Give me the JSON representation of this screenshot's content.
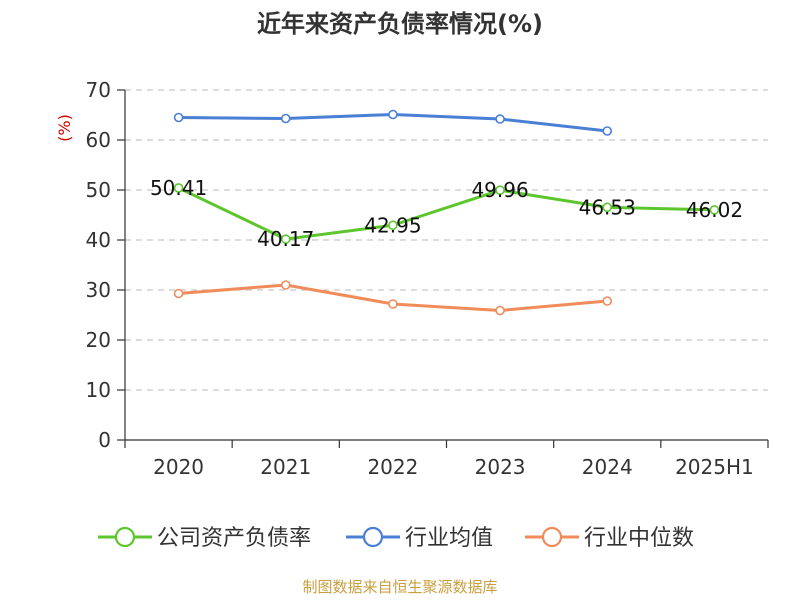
{
  "chart_data": {
    "type": "line",
    "title": "近年来资产负债率情况(%)",
    "ylabel": "(%)",
    "ylim": [
      0,
      70
    ],
    "yticks": [
      0,
      10,
      20,
      30,
      40,
      50,
      60,
      70
    ],
    "grid": true,
    "legend_position": "bottom",
    "categories": [
      "2020",
      "2021",
      "2022",
      "2023",
      "2024",
      "2025H1"
    ],
    "series": [
      {
        "name": "公司资产负债率",
        "color": "#5cc62c",
        "values": [
          50.41,
          40.17,
          42.95,
          49.96,
          46.53,
          46.02
        ],
        "labels": [
          "50.41",
          "40.17",
          "42.95",
          "49.96",
          "46.53",
          "46.02"
        ]
      },
      {
        "name": "行业均值",
        "color": "#4a7fd6",
        "values": [
          64.5,
          64.3,
          65.1,
          64.2,
          61.8,
          null
        ]
      },
      {
        "name": "行业中位数",
        "color": "#f08c5a",
        "values": [
          29.3,
          31.0,
          27.2,
          25.9,
          27.8,
          null
        ]
      }
    ]
  },
  "source": "制图数据来自恒生聚源数据库"
}
